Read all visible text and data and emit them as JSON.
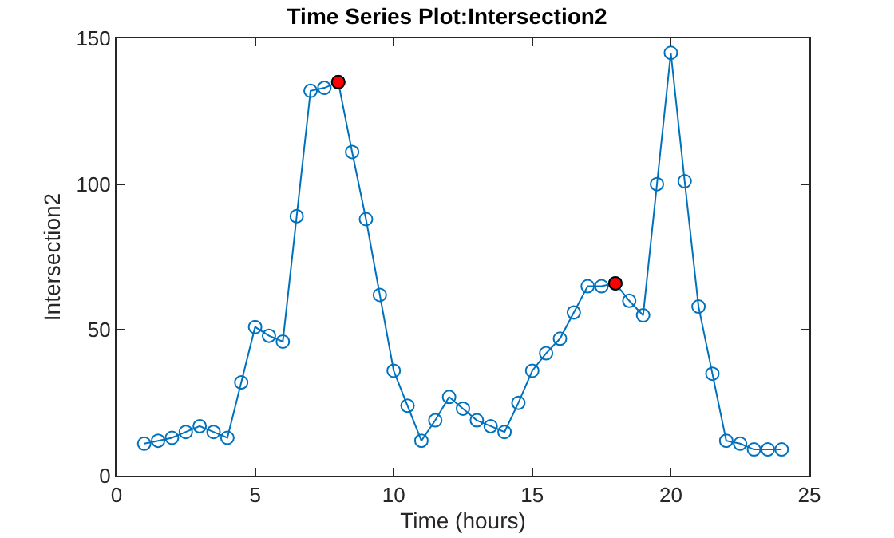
{
  "chart_data": {
    "type": "line",
    "title": "Time Series Plot:Intersection2",
    "xlabel": "Time (hours)",
    "ylabel": "Intersection2",
    "xlim": [
      0,
      25
    ],
    "xticks": [
      0,
      5,
      10,
      15,
      20,
      25
    ],
    "ylim": [
      0,
      150
    ],
    "yticks": [
      0,
      50,
      100,
      150
    ],
    "grid": false,
    "legend": false,
    "marker": "circle",
    "line_style": "solid",
    "series": [
      {
        "color": "#0072bd",
        "x": [
          1,
          1.5,
          2,
          2.5,
          3,
          3.5,
          4,
          4.5,
          5,
          5.5,
          6,
          6.5,
          7,
          7.5,
          8,
          8.5,
          9,
          9.5,
          10,
          10.5,
          11,
          11.5,
          12,
          12.5,
          13,
          13.5,
          14,
          14.5,
          15,
          15.5,
          16,
          16.5,
          17,
          17.5,
          18,
          18.5,
          19,
          19.5,
          20,
          20.5,
          21,
          21.5,
          22,
          22.5,
          23,
          23.5,
          24
        ],
        "values": [
          11,
          12,
          13,
          15,
          17,
          15,
          13,
          32,
          51,
          48,
          46,
          89,
          132,
          133,
          135,
          111,
          88,
          62,
          36,
          24,
          12,
          19,
          27,
          23,
          19,
          17,
          15,
          25,
          36,
          42,
          47,
          56,
          65,
          65,
          66,
          60,
          55,
          100,
          145,
          101,
          58,
          35,
          12,
          11,
          9,
          9,
          9
        ]
      },
      {
        "type": "scatter",
        "color": "#ff0000",
        "x": [
          8,
          18
        ],
        "values": [
          135,
          66
        ]
      }
    ]
  }
}
